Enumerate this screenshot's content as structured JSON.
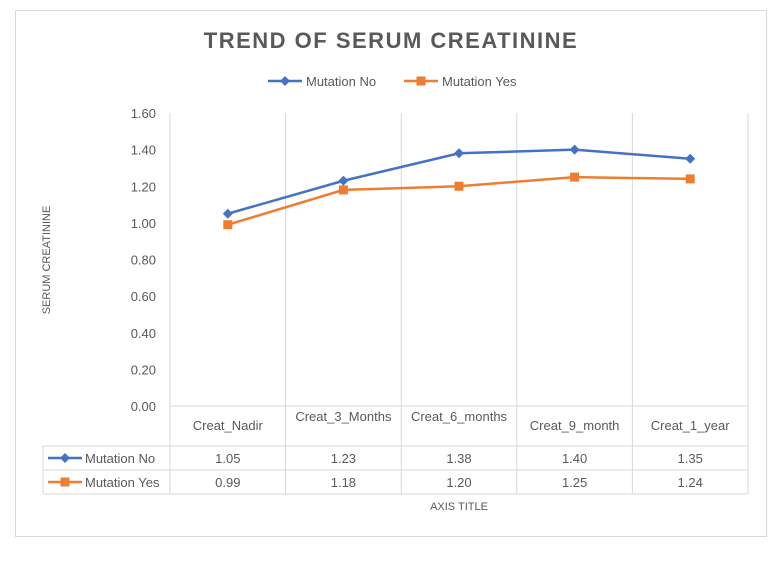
{
  "chart_data": {
    "type": "line",
    "title": "TREND OF SERUM CREATININE",
    "xlabel": "AXIS TITLE",
    "ylabel": "SERUM CREATININE",
    "ylim": [
      0,
      1.6
    ],
    "yticks": [
      "0.00",
      "0.20",
      "0.40",
      "0.60",
      "0.80",
      "1.00",
      "1.20",
      "1.40",
      "1.60"
    ],
    "grid": "vertical",
    "legend": "top",
    "data_table": true,
    "categories": [
      "Creat_Nadir",
      "Creat_3_Months",
      "Creat_6_months",
      "Creat_9_month",
      "Creat_1_year"
    ],
    "series": [
      {
        "name": "Mutation No",
        "values": [
          1.05,
          1.23,
          1.38,
          1.4,
          1.35
        ],
        "labels": [
          "1.05",
          "1.23",
          "1.38",
          "1.40",
          "1.35"
        ],
        "color": "#4472c4",
        "marker": "diamond"
      },
      {
        "name": "Mutation Yes",
        "values": [
          0.99,
          1.18,
          1.2,
          1.25,
          1.24
        ],
        "labels": [
          "0.99",
          "1.18",
          "1.20",
          "1.25",
          "1.24"
        ],
        "color": "#ed7d31",
        "marker": "square"
      }
    ]
  }
}
